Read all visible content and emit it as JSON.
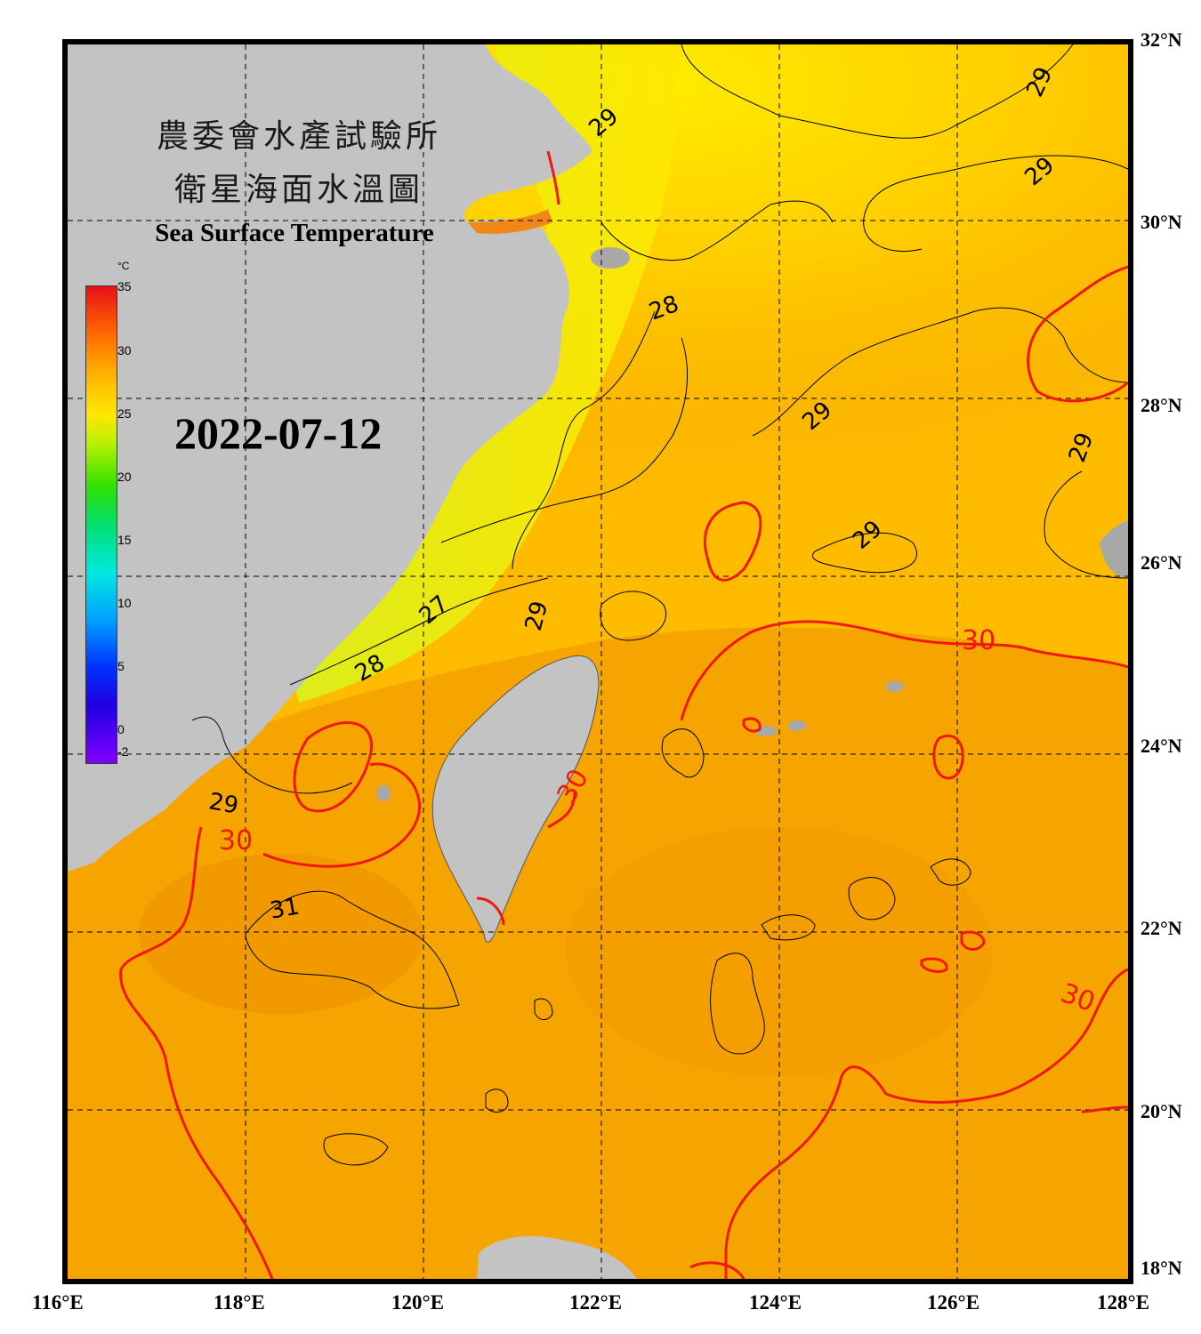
{
  "title": {
    "zh_line1": "農委會水產試驗所",
    "zh_line2": "衛星海面水溫圖",
    "en": "Sea Surface Temperature"
  },
  "date": "2022-07-12",
  "colorbar": {
    "unit": "°C",
    "min": -2,
    "max": 35,
    "ticks": [
      "35",
      "30",
      "25",
      "20",
      "15",
      "10",
      "5",
      "0",
      "-2"
    ]
  },
  "latitude_labels": [
    "32°N",
    "30°N",
    "28°N",
    "26°N",
    "24°N",
    "22°N",
    "20°N",
    "18°N"
  ],
  "longitude_labels": [
    "116°E",
    "118°E",
    "120°E",
    "122°E",
    "124°E",
    "126°E",
    "128°E"
  ],
  "contour_labels": [
    "29",
    "29",
    "29",
    "28",
    "29",
    "29",
    "29",
    "27",
    "29",
    "28",
    "30",
    "30",
    "29",
    "30",
    "31",
    "30"
  ],
  "colors": {
    "land": "#c3c3c3",
    "warm_sea": "#f6a400",
    "cool_sea": "#ffe000",
    "coastal_cool": "#d6f020",
    "contour_30": "#ee1a10",
    "contour_black": "#000000"
  }
}
